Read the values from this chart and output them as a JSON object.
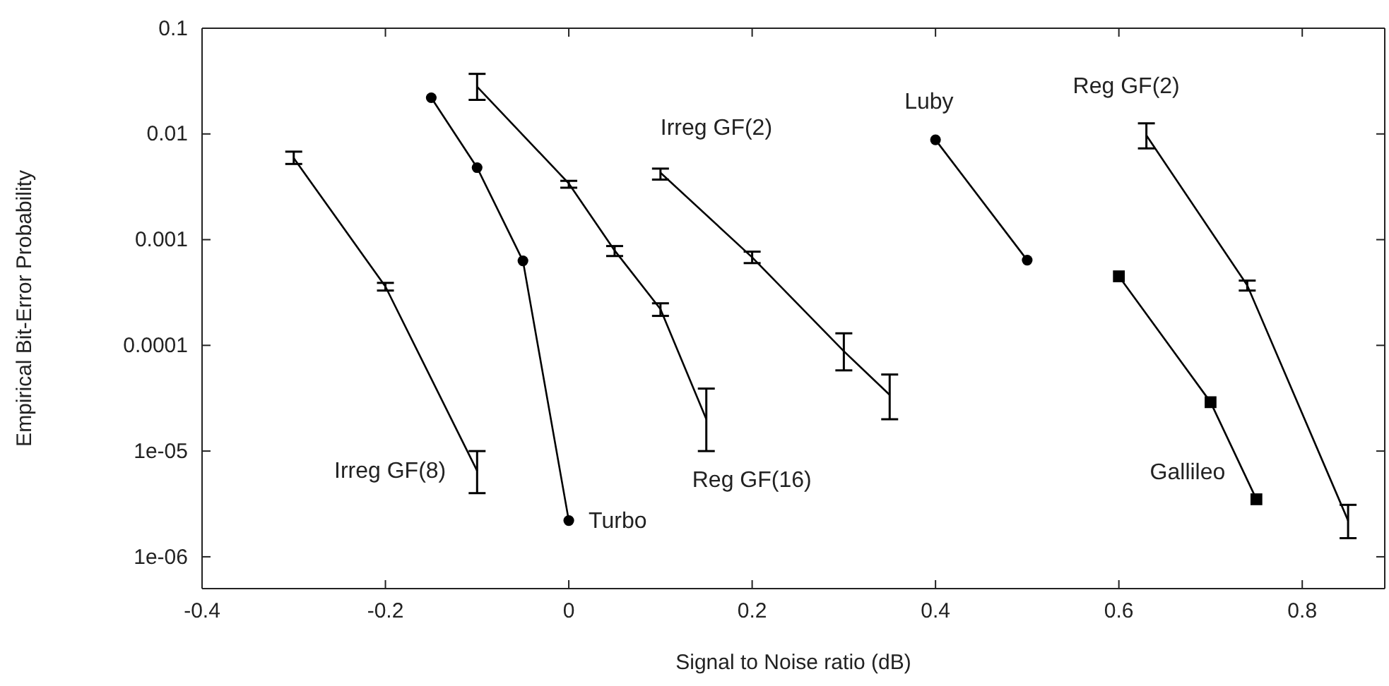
{
  "chart_data": {
    "type": "line",
    "xlabel": "Signal to Noise ratio (dB)",
    "ylabel": "Empirical Bit-Error Probability",
    "log": "y",
    "grid": false,
    "line_style": "solid",
    "xlim": [
      -0.4,
      0.89
    ],
    "ylim": [
      5e-07,
      0.1
    ],
    "xticks": [
      -0.4,
      -0.2,
      0,
      0.2,
      0.4,
      0.6,
      0.8
    ],
    "yticks": [
      0.1,
      0.01,
      0.001,
      0.0001,
      {
        "value": 1e-05,
        "label": "1e-05"
      },
      {
        "value": 1e-06,
        "label": "1e-06"
      }
    ],
    "series": [
      {
        "name": "Irreg GF(8)",
        "color": "#000000",
        "marker": "none",
        "x": [
          -0.3,
          -0.2,
          -0.1
        ],
        "values": [
          0.0059,
          0.00036,
          6.5e-06
        ],
        "errors": [
          [
            0.0052,
            0.0068
          ],
          [
            0.00033,
            0.00039
          ],
          [
            4e-06,
            1e-05
          ]
        ]
      },
      {
        "name": "Turbo",
        "color": "#000000",
        "marker": "circle",
        "x": [
          -0.15,
          -0.1,
          -0.05,
          0
        ],
        "values": [
          0.022,
          0.0048,
          0.00063,
          2.2e-06
        ]
      },
      {
        "name": "Reg GF(16)",
        "color": "#000000",
        "marker": "none",
        "x": [
          -0.1,
          0,
          0.05,
          0.1,
          0.15
        ],
        "values": [
          0.028,
          0.0034,
          0.00079,
          0.00022,
          2e-05
        ],
        "errors": [
          [
            0.021,
            0.037
          ],
          [
            0.0031,
            0.0036
          ],
          [
            0.0007,
            0.00087
          ],
          [
            0.00019,
            0.00025
          ],
          [
            1e-05,
            3.9e-05
          ]
        ]
      },
      {
        "name": "Irreg GF(2)",
        "color": "#000000",
        "marker": "none",
        "x": [
          0.1,
          0.2,
          0.3,
          0.35
        ],
        "values": [
          0.0043,
          0.00068,
          8.8e-05,
          3.4e-05
        ],
        "errors": [
          [
            0.0037,
            0.0047
          ],
          [
            0.0006,
            0.00077
          ],
          [
            5.8e-05,
            0.00013
          ],
          [
            2e-05,
            5.3e-05
          ]
        ]
      },
      {
        "name": "Luby",
        "color": "#000000",
        "marker": "circle",
        "x": [
          0.4,
          0.5
        ],
        "values": [
          0.0088,
          0.00064
        ]
      },
      {
        "name": "Reg GF(2)",
        "color": "#000000",
        "marker": "none",
        "x": [
          0.63,
          0.74,
          0.85
        ],
        "values": [
          0.0097,
          0.00037,
          2.2e-06
        ],
        "errors": [
          [
            0.0073,
            0.0126
          ],
          [
            0.00033,
            0.00041
          ],
          [
            1.5e-06,
            3.1e-06
          ]
        ]
      },
      {
        "name": "Gallileo",
        "color": "#000000",
        "marker": "square",
        "x": [
          0.6,
          0.7,
          0.75
        ],
        "values": [
          0.00045,
          2.9e-05,
          3.5e-06
        ]
      }
    ]
  }
}
